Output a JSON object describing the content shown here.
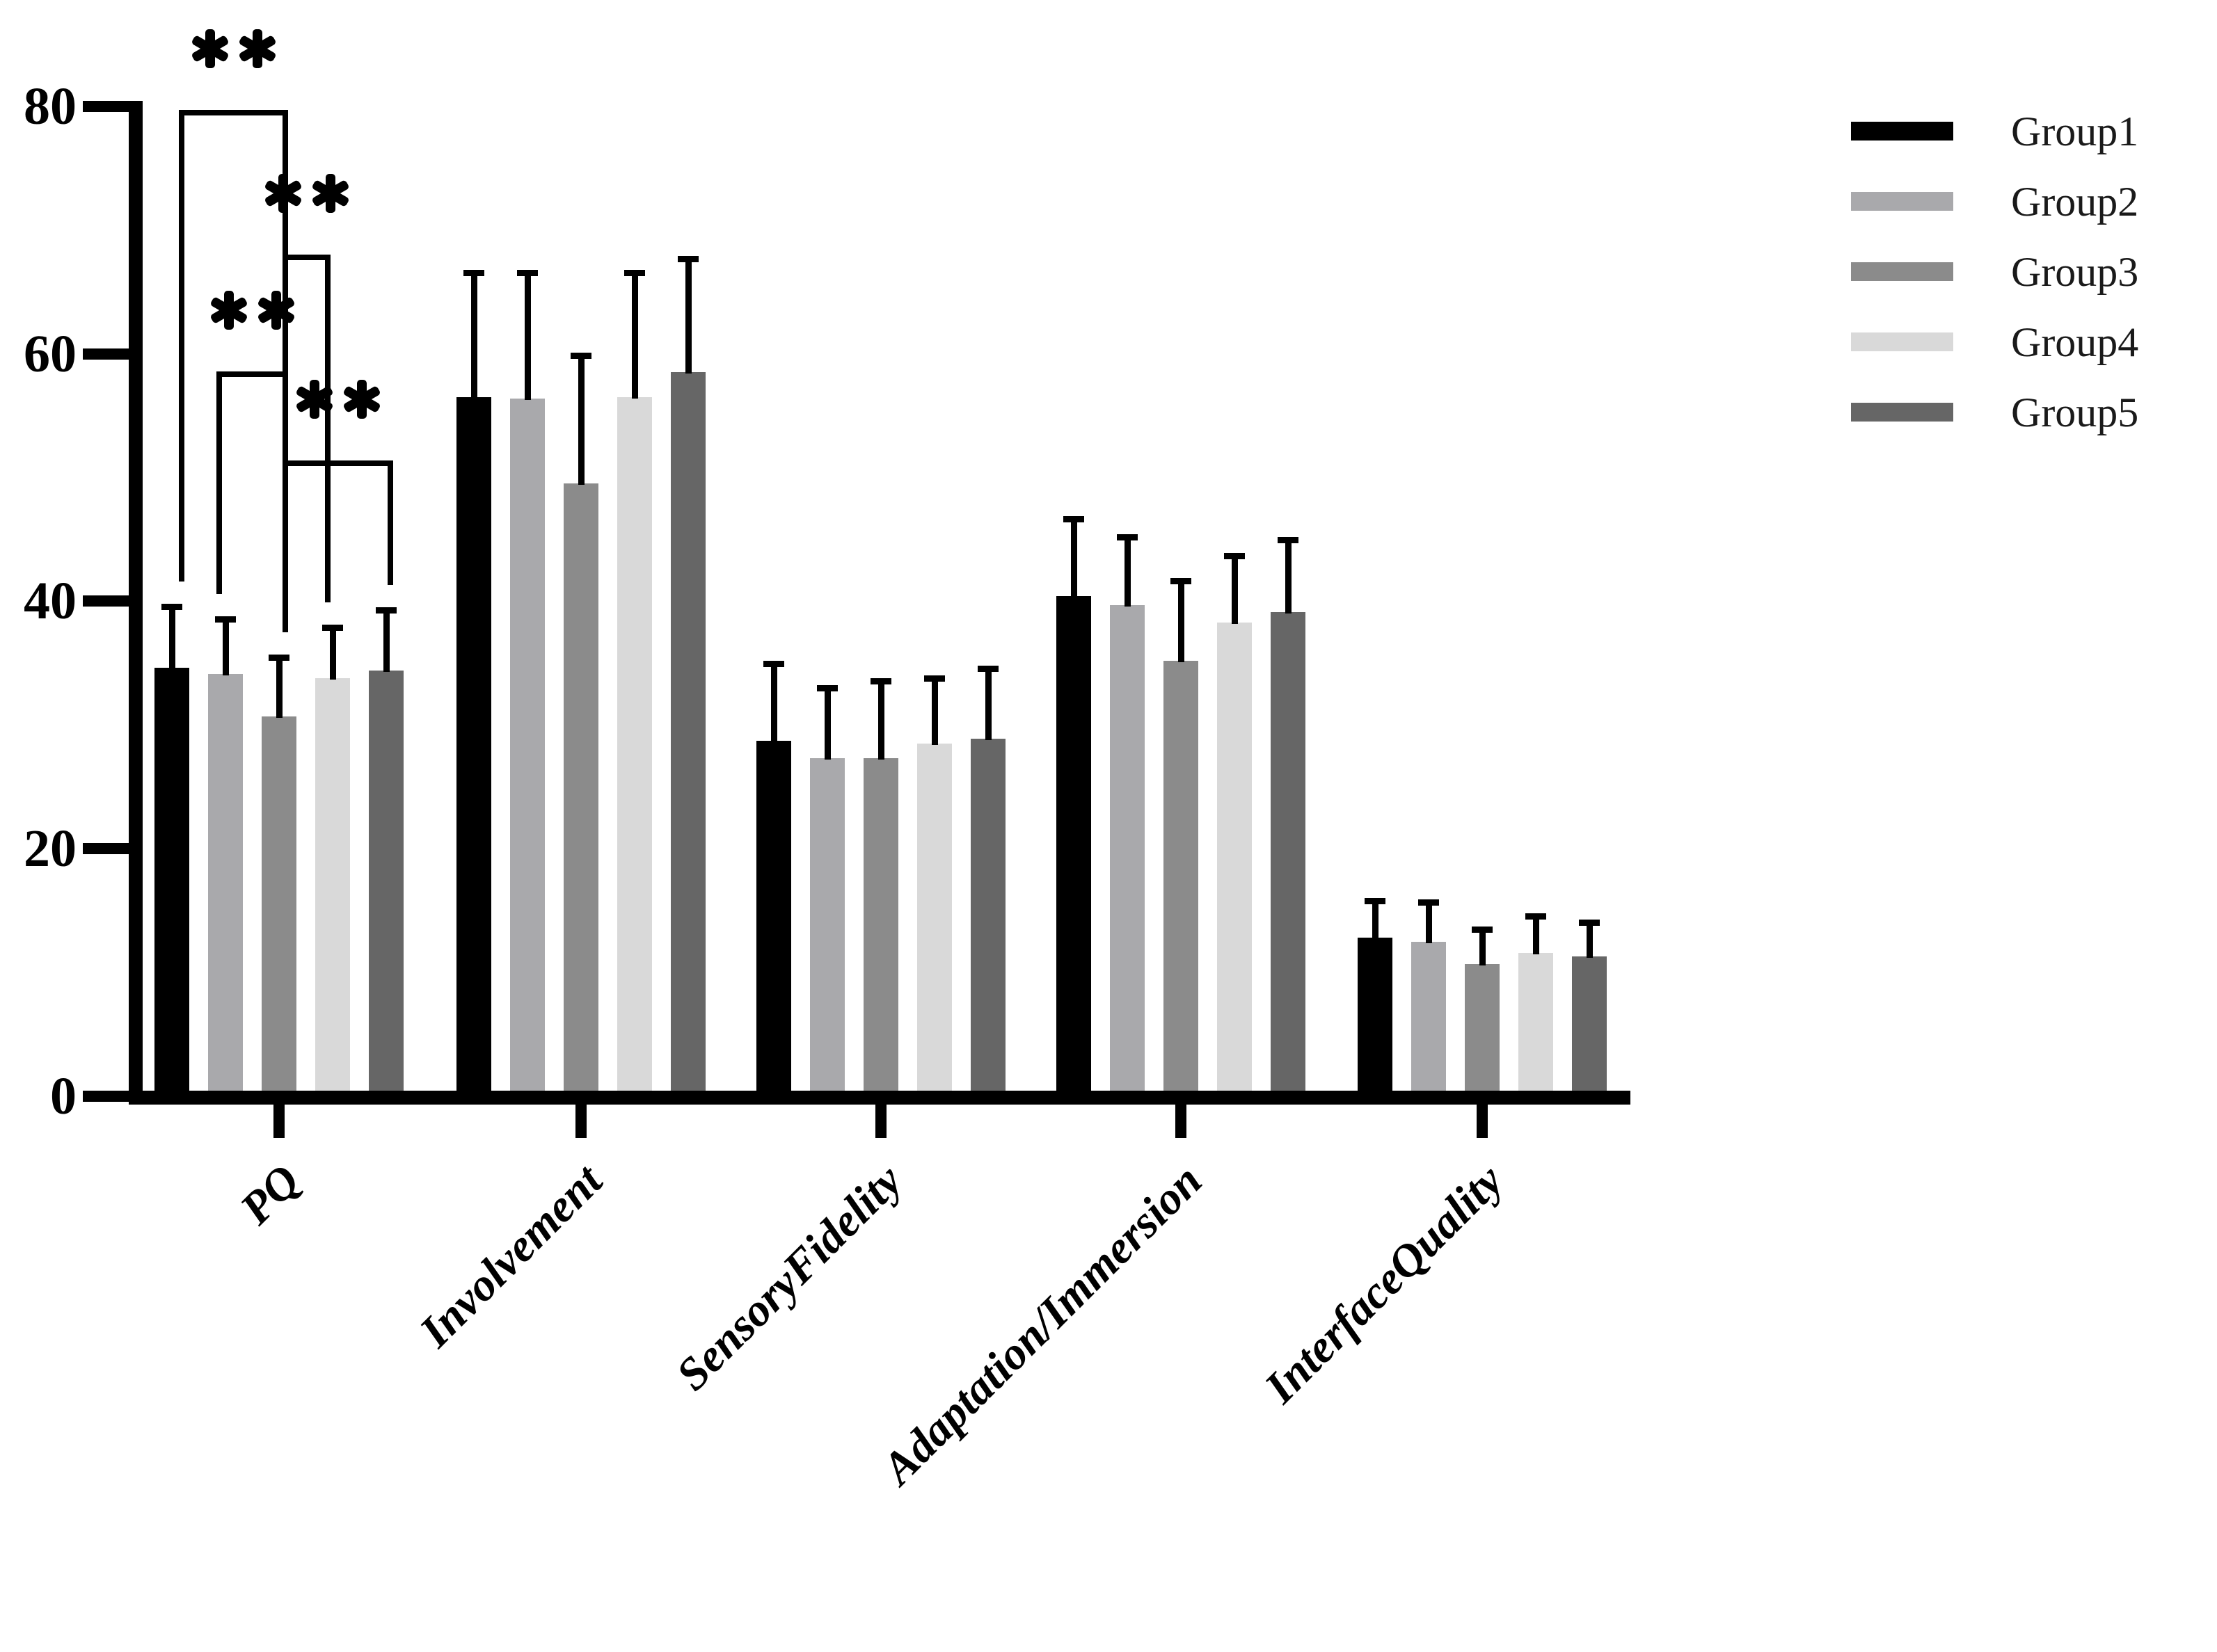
{
  "figure": {
    "background": "#ffffff",
    "title": ""
  },
  "legend": {
    "position": "right",
    "items": [
      {
        "label": "Group1",
        "color": "#000000"
      },
      {
        "label": "Group2",
        "color": "#a9a9ac"
      },
      {
        "label": "Group3",
        "color": "#8b8b8b"
      },
      {
        "label": "Group4",
        "color": "#d9d9d9"
      },
      {
        "label": "Group5",
        "color": "#666666"
      }
    ]
  },
  "significance": {
    "marker": "**",
    "comparisons": [
      {
        "between": [
          "Group1",
          "Group3"
        ],
        "category": "PQ",
        "bracket_height": 79.7
      },
      {
        "between": [
          "Group3",
          "Group4"
        ],
        "category": "PQ",
        "bracket_height": 68.0
      },
      {
        "between": [
          "Group2",
          "Group3"
        ],
        "category": "PQ",
        "bracket_height": 58.6
      },
      {
        "between": [
          "Group3",
          "Group5"
        ],
        "category": "PQ",
        "bracket_height": 51.4
      }
    ]
  },
  "chart_data": {
    "type": "bar",
    "title": "",
    "xlabel": "",
    "ylabel": "",
    "ylim": [
      0,
      80
    ],
    "yticks": [
      0,
      20,
      40,
      60,
      80
    ],
    "grid": false,
    "error_bars": "sd-upper-only",
    "categories": [
      "PQ",
      "Involvement",
      "SensoryFidelity",
      "Adaptation/Immersion",
      "InterfaceQuality"
    ],
    "series": [
      {
        "name": "Group1",
        "color": "#000000",
        "values": [
          34.6,
          56.5,
          28.7,
          40.4,
          12.8
        ],
        "errors": [
          5.2,
          10.3,
          6.5,
          6.5,
          3.2
        ]
      },
      {
        "name": "Group2",
        "color": "#a9a9ac",
        "values": [
          34.1,
          56.4,
          27.3,
          39.7,
          12.5
        ],
        "errors": [
          4.7,
          10.4,
          5.9,
          5.7,
          3.4
        ]
      },
      {
        "name": "Group3",
        "color": "#8b8b8b",
        "values": [
          30.7,
          49.5,
          27.3,
          35.2,
          10.7
        ],
        "errors": [
          5.0,
          10.6,
          6.5,
          6.7,
          3.0
        ]
      },
      {
        "name": "Group4",
        "color": "#d9d9d9",
        "values": [
          33.8,
          56.5,
          28.5,
          38.3,
          11.6
        ],
        "errors": [
          4.3,
          10.3,
          5.5,
          5.6,
          3.2
        ]
      },
      {
        "name": "Group5",
        "color": "#666666",
        "values": [
          34.4,
          58.5,
          28.9,
          39.1,
          11.3
        ],
        "errors": [
          5.1,
          9.4,
          5.9,
          6.1,
          3.0
        ]
      }
    ]
  }
}
